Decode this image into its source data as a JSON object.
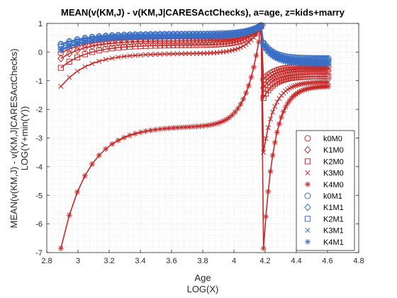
{
  "chart_data": {
    "type": "line",
    "title": "MEAN(v(KM,J) - v(KM,J|CARESActChecks), a=age, z=kids+marry",
    "xlabel": "Age",
    "xlabel2": "LOG(X)",
    "ylabel": "MEAN(v(KM,J) - v(KM,J|CARESActChecks)",
    "ylabel2": "LOG(Y+min(Y))",
    "xlim": [
      2.8,
      4.8
    ],
    "ylim": [
      -7,
      1
    ],
    "xticks": [
      2.8,
      3,
      3.2,
      3.4,
      3.6,
      3.8,
      4,
      4.2,
      4.4,
      4.6,
      4.8
    ],
    "yticks": [
      -7,
      -6,
      -5,
      -4,
      -3,
      -2,
      -1,
      0,
      1
    ],
    "x_tick_labels": [
      "2.8",
      "3",
      "3.2",
      "3.4",
      "3.6",
      "3.8",
      "4",
      "4.2",
      "4.4",
      "4.6",
      "4.8"
    ],
    "y_tick_labels": [
      "-7",
      "-6",
      "-5",
      "-4",
      "-3",
      "-2",
      "-1",
      "0",
      "1"
    ],
    "grid": "on",
    "minor_grid": "on",
    "legend_position": "bottom-right",
    "age_start": 18,
    "age_end": 100,
    "kink_age": 65,
    "series": [
      {
        "name": "k0M0",
        "marker": "o",
        "color": "#c62828",
        "start": -0.03,
        "pre_kink": 0.9,
        "post_start": -0.95,
        "end": -0.5
      },
      {
        "name": "K1M0",
        "marker": "d",
        "color": "#c62828",
        "start": -0.22,
        "pre_kink": 0.9,
        "post_start": -1.25,
        "end": -0.65
      },
      {
        "name": "K2M0",
        "marker": "s",
        "color": "#c62828",
        "start": -0.55,
        "pre_kink": 0.9,
        "post_start": -1.6,
        "end": -0.85
      },
      {
        "name": "K3M0",
        "marker": "x",
        "color": "#c62828",
        "start": -1.2,
        "pre_kink": 0.9,
        "post_start": -3.5,
        "end": -1.05
      },
      {
        "name": "K4M0",
        "marker": "*",
        "color": "#c62828",
        "start": -6.85,
        "pre_kink": 0.9,
        "post_start": -6.85,
        "end": -1.2
      },
      {
        "name": "k0M1",
        "marker": "o",
        "color": "#3a6fc4",
        "start": 0.28,
        "pre_kink": 0.92,
        "post_start": 0.32,
        "end": -0.22
      },
      {
        "name": "K1M1",
        "marker": "d",
        "color": "#3a6fc4",
        "start": 0.25,
        "pre_kink": 0.92,
        "post_start": 0.3,
        "end": -0.28
      },
      {
        "name": "K2M1",
        "marker": "s",
        "color": "#3a6fc4",
        "start": 0.18,
        "pre_kink": 0.92,
        "post_start": 0.28,
        "end": -0.32
      },
      {
        "name": "K3M1",
        "marker": "x",
        "color": "#3a6fc4",
        "start": 0.1,
        "pre_kink": 0.92,
        "post_start": 0.25,
        "end": -0.38
      },
      {
        "name": "K4M1",
        "marker": "*",
        "color": "#3a6fc4",
        "start": 0.05,
        "pre_kink": 0.92,
        "post_start": 0.22,
        "end": -0.42
      }
    ]
  }
}
